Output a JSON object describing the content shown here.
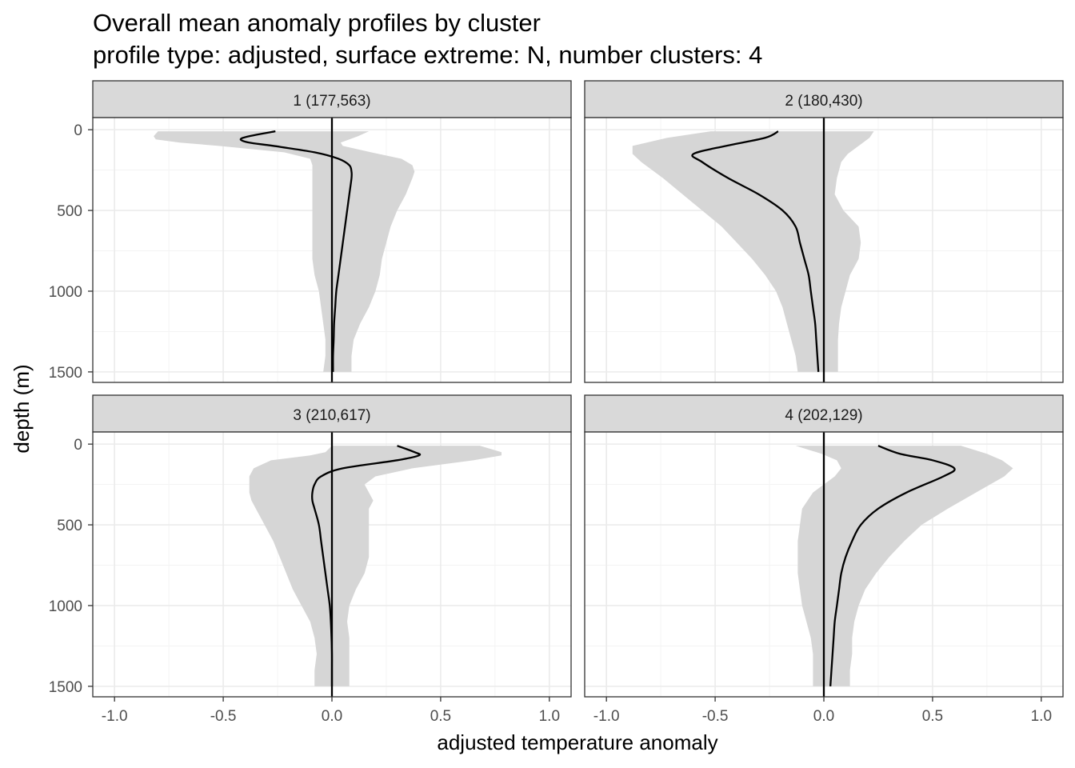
{
  "title": "Overall mean anomaly profiles by cluster",
  "subtitle": "profile type: adjusted, surface extreme: N, number clusters: 4",
  "chart_data": {
    "type": "line",
    "title": "Overall mean anomaly profiles by cluster",
    "subtitle": "profile type: adjusted, surface extreme: N, number clusters: 4",
    "xlabel": "adjusted temperature anomaly",
    "ylabel": "depth (m)",
    "xlim": [
      -1.1,
      1.1
    ],
    "ylim": [
      1565,
      -75
    ],
    "y_reversed": true,
    "x_ticks": [
      -1.0,
      -0.5,
      0.0,
      0.5,
      1.0
    ],
    "x_tick_labels": [
      "-1.0",
      "-0.5",
      "0.0",
      "0.5",
      "1.0"
    ],
    "y_ticks": [
      0,
      500,
      1000,
      1500
    ],
    "y_tick_labels": [
      "0",
      "500",
      "1000",
      "1500"
    ],
    "grid": true,
    "reference_line_x": 0,
    "colors": {
      "line": "#000000",
      "ribbon": "#d6d6d6",
      "strip": "#d9d9d9"
    },
    "panels": [
      {
        "label": "1 (177,563)",
        "depth": [
          10,
          40,
          60,
          80,
          100,
          140,
          180,
          220,
          260,
          300,
          400,
          500,
          600,
          700,
          800,
          900,
          1000,
          1100,
          1200,
          1300,
          1400,
          1500
        ],
        "mean": [
          -0.26,
          -0.38,
          -0.42,
          -0.38,
          -0.27,
          -0.08,
          0.03,
          0.08,
          0.09,
          0.09,
          0.08,
          0.07,
          0.06,
          0.05,
          0.04,
          0.03,
          0.02,
          0.015,
          0.01,
          0.008,
          0.005,
          0.005
        ],
        "lower": [
          -0.8,
          -0.82,
          -0.81,
          -0.7,
          -0.52,
          -0.22,
          -0.1,
          -0.09,
          -0.09,
          -0.09,
          -0.09,
          -0.09,
          -0.09,
          -0.09,
          -0.09,
          -0.08,
          -0.06,
          -0.05,
          -0.04,
          -0.03,
          -0.03,
          -0.04
        ],
        "upper": [
          0.17,
          0.12,
          0.08,
          0.04,
          0.05,
          0.18,
          0.32,
          0.37,
          0.38,
          0.37,
          0.34,
          0.3,
          0.27,
          0.25,
          0.23,
          0.22,
          0.2,
          0.17,
          0.13,
          0.1,
          0.09,
          0.09
        ]
      },
      {
        "label": "2 (180,430)",
        "depth": [
          10,
          50,
          100,
          150,
          200,
          300,
          400,
          500,
          600,
          700,
          800,
          900,
          1000,
          1100,
          1200,
          1300,
          1400,
          1500
        ],
        "mean": [
          -0.21,
          -0.27,
          -0.45,
          -0.6,
          -0.56,
          -0.44,
          -0.3,
          -0.19,
          -0.13,
          -0.11,
          -0.09,
          -0.07,
          -0.06,
          -0.05,
          -0.04,
          -0.035,
          -0.03,
          -0.025
        ],
        "lower": [
          -0.52,
          -0.72,
          -0.88,
          -0.88,
          -0.84,
          -0.74,
          -0.65,
          -0.56,
          -0.47,
          -0.4,
          -0.33,
          -0.27,
          -0.22,
          -0.19,
          -0.17,
          -0.15,
          -0.13,
          -0.12
        ],
        "upper": [
          0.23,
          0.21,
          0.16,
          0.11,
          0.08,
          0.06,
          0.05,
          0.09,
          0.16,
          0.17,
          0.16,
          0.12,
          0.1,
          0.08,
          0.07,
          0.065,
          0.065,
          0.065
        ]
      },
      {
        "label": "3 (210,617)",
        "depth": [
          10,
          50,
          70,
          100,
          150,
          200,
          250,
          300,
          350,
          400,
          500,
          600,
          700,
          800,
          900,
          1000,
          1100,
          1200,
          1300,
          1400,
          1500
        ],
        "mean": [
          0.3,
          0.38,
          0.4,
          0.3,
          0.05,
          -0.05,
          -0.08,
          -0.09,
          -0.09,
          -0.08,
          -0.06,
          -0.05,
          -0.04,
          -0.03,
          -0.02,
          -0.01,
          -0.005,
          -0.002,
          0.0,
          0.0,
          0.0
        ],
        "lower": [
          0.0,
          -0.03,
          -0.1,
          -0.28,
          -0.36,
          -0.38,
          -0.38,
          -0.38,
          -0.37,
          -0.35,
          -0.31,
          -0.27,
          -0.24,
          -0.21,
          -0.18,
          -0.14,
          -0.1,
          -0.08,
          -0.07,
          -0.08,
          -0.08
        ],
        "upper": [
          0.68,
          0.78,
          0.78,
          0.65,
          0.37,
          0.2,
          0.15,
          0.17,
          0.19,
          0.17,
          0.17,
          0.17,
          0.17,
          0.15,
          0.11,
          0.08,
          0.07,
          0.08,
          0.08,
          0.08,
          0.08
        ]
      },
      {
        "label": "4 (202,129)",
        "depth": [
          10,
          60,
          100,
          150,
          200,
          300,
          400,
          500,
          600,
          700,
          800,
          900,
          1000,
          1100,
          1200,
          1300,
          1400,
          1500
        ],
        "mean": [
          0.25,
          0.35,
          0.5,
          0.6,
          0.55,
          0.38,
          0.25,
          0.17,
          0.13,
          0.1,
          0.08,
          0.07,
          0.06,
          0.05,
          0.045,
          0.04,
          0.035,
          0.03
        ],
        "lower": [
          -0.13,
          -0.01,
          0.06,
          0.08,
          0.05,
          -0.05,
          -0.1,
          -0.11,
          -0.12,
          -0.12,
          -0.12,
          -0.11,
          -0.1,
          -0.08,
          -0.06,
          -0.05,
          -0.05,
          -0.05
        ],
        "upper": [
          0.63,
          0.75,
          0.82,
          0.87,
          0.83,
          0.7,
          0.57,
          0.45,
          0.37,
          0.3,
          0.24,
          0.19,
          0.16,
          0.14,
          0.13,
          0.13,
          0.12,
          0.12
        ]
      }
    ]
  }
}
